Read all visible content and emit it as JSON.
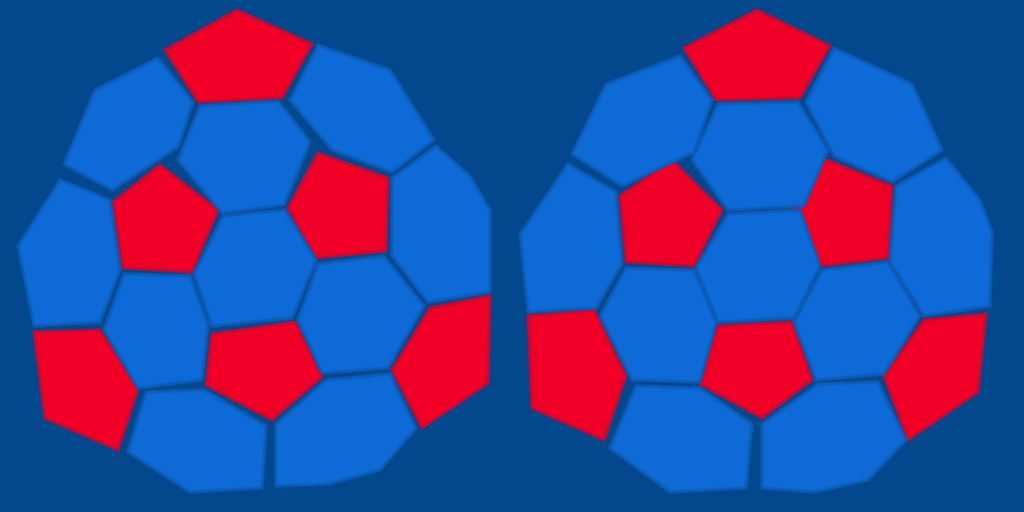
{
  "colors": {
    "background": "#03478c",
    "seam": "#044585",
    "hexagon": "#0b6ad6",
    "pentagon": "#f00526",
    "pentagon_edge": "#b8103a",
    "hexagon_edge": "#0a5bb8"
  },
  "texture": {
    "description_free": true,
    "hemispheres": [
      "left",
      "right"
    ],
    "pentagons_per_hemisphere": 6,
    "hexagons_per_hemisphere": 10
  }
}
